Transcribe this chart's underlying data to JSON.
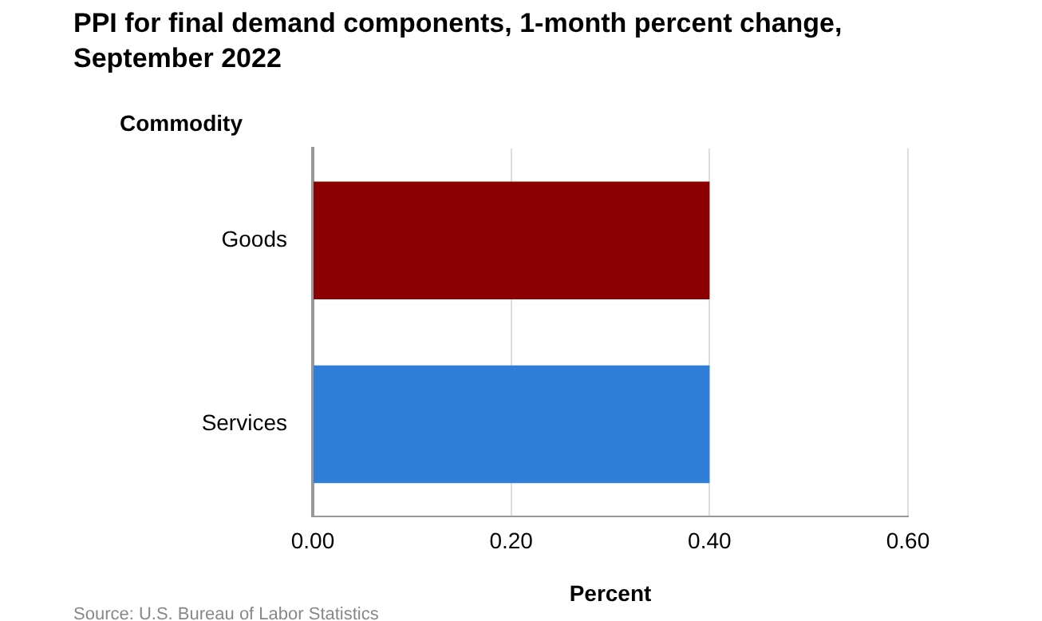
{
  "chart_data": {
    "type": "bar",
    "orientation": "horizontal",
    "title": "PPI for final demand components, 1-month percent change, September 2022",
    "xlabel": "Percent",
    "ylabel": "Commodity",
    "categories": [
      "Goods",
      "Services"
    ],
    "values": [
      0.4,
      0.4
    ],
    "colors": [
      "#8b0000",
      "#2f7fd8"
    ],
    "xlim": [
      0,
      0.6
    ],
    "xticks": [
      {
        "value": 0,
        "label": "0.00"
      },
      {
        "value": 0.2,
        "label": "0.20"
      },
      {
        "value": 0.4,
        "label": "0.40"
      },
      {
        "value": 0.6,
        "label": "0.60"
      }
    ],
    "grid": "x",
    "legend": false,
    "annotations": [
      "Source: U.S. Bureau of Labor Statistics"
    ]
  }
}
